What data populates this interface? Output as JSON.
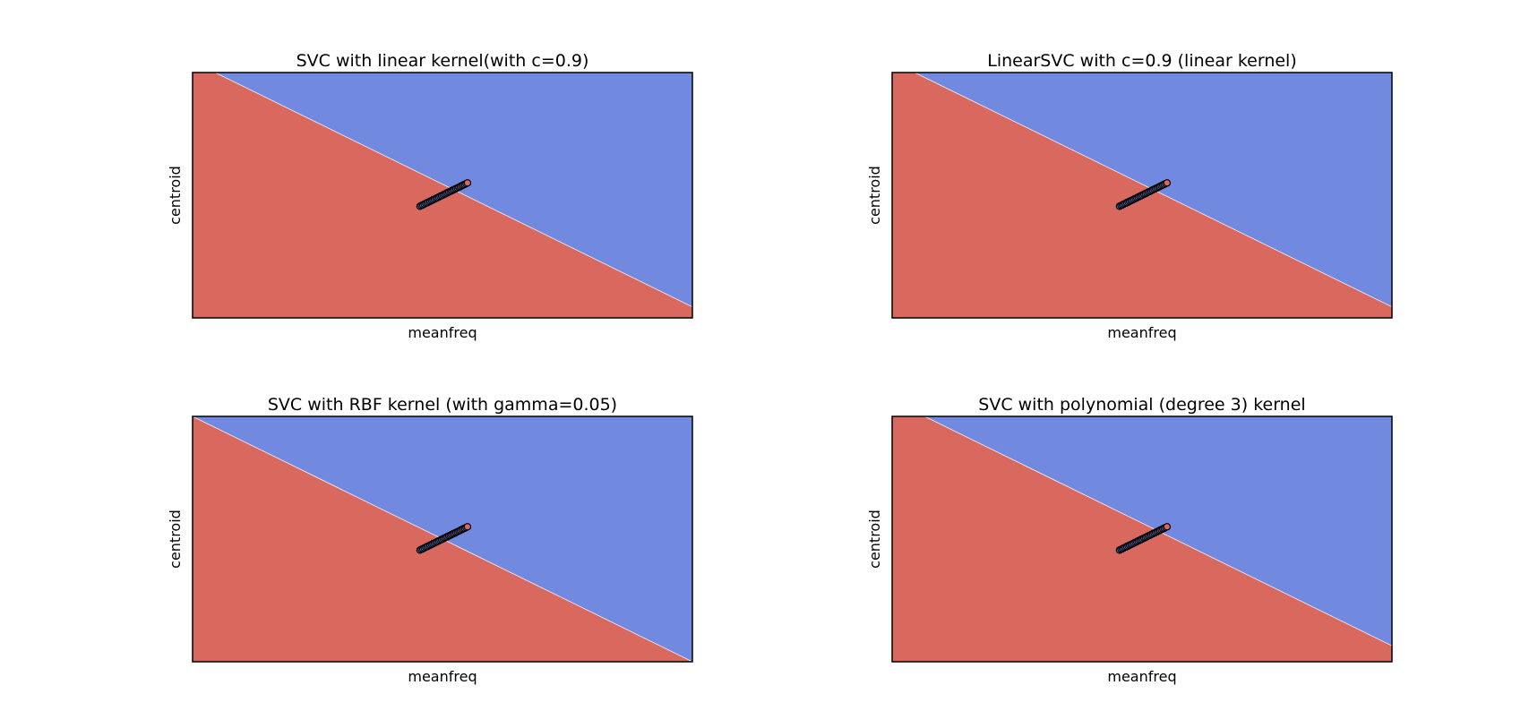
{
  "figure": {
    "background": "#ffffff",
    "region_colors": {
      "class_0": "#d9685f",
      "class_1": "#7289e0",
      "boundary": "#ffffff",
      "marker_edge": "#000000"
    }
  },
  "chart_data": [
    {
      "type": "scatter",
      "title": "SVC with linear kernel(with c=0.9)",
      "xlabel": "meanfreq",
      "ylabel": "centroid",
      "xlim": [
        0,
        1
      ],
      "ylim": [
        0,
        1
      ],
      "xticks": [],
      "yticks": [],
      "grid": false,
      "decision_boundary": [
        [
          0.045,
          1.0
        ],
        [
          1.0,
          0.045
        ]
      ],
      "regions": {
        "below": "class_0",
        "above": "class_1"
      },
      "points_segment": {
        "from": [
          0.455,
          0.455
        ],
        "to": [
          0.55,
          0.55
        ],
        "count": 34
      }
    },
    {
      "type": "scatter",
      "title": "LinearSVC with c=0.9 (linear kernel)",
      "xlabel": "meanfreq",
      "ylabel": "centroid",
      "xlim": [
        0,
        1
      ],
      "ylim": [
        0,
        1
      ],
      "xticks": [],
      "yticks": [],
      "grid": false,
      "decision_boundary": [
        [
          0.045,
          1.0
        ],
        [
          1.0,
          0.045
        ]
      ],
      "regions": {
        "below": "class_0",
        "above": "class_1"
      },
      "points_segment": {
        "from": [
          0.455,
          0.455
        ],
        "to": [
          0.55,
          0.55
        ],
        "count": 34
      }
    },
    {
      "type": "scatter",
      "title": "SVC with RBF kernel (with gamma=0.05)",
      "xlabel": "meanfreq",
      "ylabel": "centroid",
      "xlim": [
        0,
        1
      ],
      "ylim": [
        0,
        1
      ],
      "xticks": [],
      "yticks": [],
      "grid": false,
      "decision_boundary": [
        [
          0.0,
          1.0
        ],
        [
          1.0,
          0.0
        ]
      ],
      "regions": {
        "below": "class_0",
        "above": "class_1"
      },
      "points_segment": {
        "from": [
          0.455,
          0.455
        ],
        "to": [
          0.55,
          0.55
        ],
        "count": 34
      }
    },
    {
      "type": "scatter",
      "title": "SVC with polynomial (degree 3) kernel",
      "xlabel": "meanfreq",
      "ylabel": "centroid",
      "xlim": [
        0,
        1
      ],
      "ylim": [
        0,
        1
      ],
      "xticks": [],
      "yticks": [],
      "grid": false,
      "decision_boundary": [
        [
          0.065,
          1.0
        ],
        [
          1.0,
          0.065
        ]
      ],
      "regions": {
        "below": "class_0",
        "above": "class_1"
      },
      "points_segment": {
        "from": [
          0.455,
          0.455
        ],
        "to": [
          0.55,
          0.55
        ],
        "count": 34
      }
    }
  ]
}
